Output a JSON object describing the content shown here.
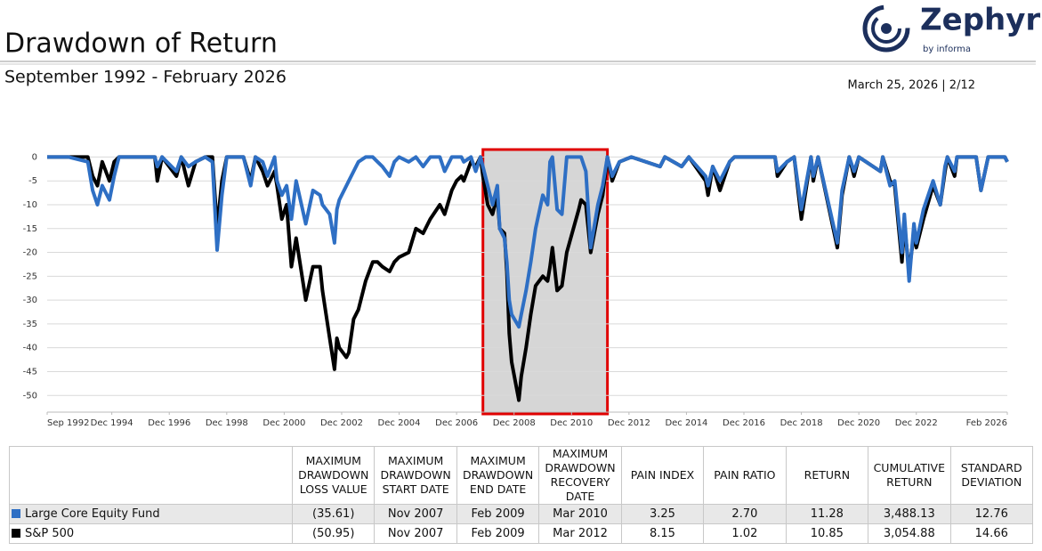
{
  "header": {
    "title": "Drawdown of Return",
    "subtitle": "September 1992 - February 2026",
    "date": "March 25, 2026 | 2/12",
    "logo": "Zephyr",
    "logo_sub": "by informa"
  },
  "chart_data": {
    "type": "line",
    "xlim": [
      "1992-09",
      "2026-02"
    ],
    "xticks": [
      {
        "value": "1992-09",
        "label": "Sep 1992"
      },
      {
        "value": "1994-12",
        "label": "Dec 1994"
      },
      {
        "value": "1996-12",
        "label": "Dec 1996"
      },
      {
        "value": "1998-12",
        "label": "Dec 1998"
      },
      {
        "value": "2000-12",
        "label": "Dec 2000"
      },
      {
        "value": "2002-12",
        "label": "Dec 2002"
      },
      {
        "value": "2004-12",
        "label": "Dec 2004"
      },
      {
        "value": "2006-12",
        "label": "Dec 2006"
      },
      {
        "value": "2008-12",
        "label": "Dec 2008"
      },
      {
        "value": "2010-12",
        "label": "Dec 2010"
      },
      {
        "value": "2012-12",
        "label": "Dec 2012"
      },
      {
        "value": "2014-12",
        "label": "Dec 2014"
      },
      {
        "value": "2016-12",
        "label": "Dec 2016"
      },
      {
        "value": "2018-12",
        "label": "Dec 2018"
      },
      {
        "value": "2020-12",
        "label": "Dec 2020"
      },
      {
        "value": "2022-12",
        "label": "Dec 2022"
      },
      {
        "value": "2026-02",
        "label": "Feb 2026"
      }
    ],
    "ylim": [
      -53.5,
      1.2
    ],
    "yticks": [
      0,
      -5,
      -10,
      -15,
      -20,
      -25,
      -30,
      -35,
      -40,
      -45,
      -50
    ],
    "grid": true,
    "highlight": {
      "start": "2007-11",
      "end": "2012-03"
    },
    "x": [
      "1992-09",
      "1993-06",
      "1994-02",
      "1994-04",
      "1994-06",
      "1994-08",
      "1994-11",
      "1995-01",
      "1995-03",
      "1996-06",
      "1996-07",
      "1996-09",
      "1997-03",
      "1997-05",
      "1997-08",
      "1997-11",
      "1998-03",
      "1998-06",
      "1998-08",
      "1998-10",
      "1998-12",
      "1999-07",
      "1999-10",
      "1999-12",
      "2000-03",
      "2000-05",
      "2000-08",
      "2000-09",
      "2000-11",
      "2001-01",
      "2001-03",
      "2001-05",
      "2001-09",
      "2001-12",
      "2002-03",
      "2002-04",
      "2002-07",
      "2002-09",
      "2002-10",
      "2002-11",
      "2003-02",
      "2003-03",
      "2003-05",
      "2003-07",
      "2003-10",
      "2004-01",
      "2004-03",
      "2004-05",
      "2004-08",
      "2004-10",
      "2004-12",
      "2005-04",
      "2005-07",
      "2005-10",
      "2006-01",
      "2006-05",
      "2006-07",
      "2006-10",
      "2006-12",
      "2007-02",
      "2007-03",
      "2007-06",
      "2007-08",
      "2007-10",
      "2007-11",
      "2008-01",
      "2008-03",
      "2008-05",
      "2008-06",
      "2008-08",
      "2008-09",
      "2008-10",
      "2008-11",
      "2009-02",
      "2009-03",
      "2009-05",
      "2009-07",
      "2009-09",
      "2009-12",
      "2010-02",
      "2010-03",
      "2010-04",
      "2010-06",
      "2010-08",
      "2010-10",
      "2011-03",
      "2011-04",
      "2011-06",
      "2011-08",
      "2011-11",
      "2012-01",
      "2012-03",
      "2012-05",
      "2012-08",
      "2013-01",
      "2014-01",
      "2014-03",
      "2014-10",
      "2015-01",
      "2015-08",
      "2015-09",
      "2015-11",
      "2016-02",
      "2016-06",
      "2016-08",
      "2018-01",
      "2018-02",
      "2018-06",
      "2018-09",
      "2018-12",
      "2019-04",
      "2019-05",
      "2019-07",
      "2020-03",
      "2020-05",
      "2020-08",
      "2020-10",
      "2020-12",
      "2021-09",
      "2021-10",
      "2022-01",
      "2022-03",
      "2022-06",
      "2022-07",
      "2022-09",
      "2022-11",
      "2022-12",
      "2023-03",
      "2023-07",
      "2023-10",
      "2023-12",
      "2024-01",
      "2024-04",
      "2024-05",
      "2025-01",
      "2025-03",
      "2025-06",
      "2026-01",
      "2026-02"
    ],
    "series": [
      {
        "name": "S&P 500",
        "color": "#000000",
        "values": [
          0,
          0,
          0,
          -4,
          -6,
          -1,
          -5,
          -1,
          0,
          0,
          -5,
          0,
          -4,
          0,
          -6,
          -1,
          0,
          0,
          -15,
          -5,
          0,
          0,
          -5,
          0,
          -3,
          -6,
          -3,
          -6,
          -13,
          -10,
          -23,
          -17,
          -30,
          -23,
          -23,
          -28,
          -38,
          -44.5,
          -38,
          -40,
          -42,
          -41,
          -34,
          -32,
          -26,
          -22,
          -22,
          -23,
          -24,
          -22,
          -21,
          -20,
          -15,
          -16,
          -13,
          -10,
          -12,
          -7,
          -5,
          -4,
          -5,
          -1,
          -2,
          0,
          -4,
          -10,
          -12,
          -8,
          -15,
          -16,
          -24,
          -37,
          -43,
          -51,
          -46,
          -40,
          -33,
          -27,
          -25,
          -26,
          -23,
          -19,
          -28,
          -27,
          -20,
          -11,
          -9,
          -10,
          -20,
          -12,
          -8,
          0,
          -5,
          -1,
          0,
          -2,
          0,
          -2,
          0,
          -5,
          -8,
          -2,
          -7,
          -1,
          0,
          0,
          -4,
          -1,
          0,
          -13,
          0,
          -5,
          0,
          -19,
          -8,
          0,
          -4,
          0,
          -3,
          0,
          -5,
          -6,
          -22,
          -14,
          -24,
          -16,
          -19,
          -13,
          -6,
          -10,
          -3,
          0,
          -4,
          0,
          0,
          -7,
          0,
          0,
          -1
        ]
      },
      {
        "name": "Large Core Equity Fund",
        "color": "#2e6fc4",
        "values": [
          0,
          0,
          -1,
          -7,
          -10,
          -6,
          -9,
          -4,
          0,
          0,
          -2,
          0,
          -3,
          0,
          -2,
          -1,
          0,
          -1,
          -19.5,
          -8,
          0,
          0,
          -6,
          0,
          -1,
          -4,
          0,
          -5,
          -8,
          -6,
          -13,
          -5,
          -14,
          -7,
          -8,
          -10,
          -12,
          -18,
          -11,
          -9,
          -6,
          -5,
          -3,
          -1,
          0,
          0,
          -1,
          -2,
          -4,
          -1,
          0,
          -1,
          0,
          -2,
          0,
          0,
          -3,
          0,
          0,
          0,
          -1,
          0,
          -3,
          0,
          -2,
          -6,
          -10,
          -6,
          -15,
          -17,
          -22,
          -30,
          -33,
          -35.6,
          -33,
          -28,
          -22,
          -15,
          -8,
          -10,
          -1,
          0,
          -11,
          -12,
          0,
          0,
          0,
          -3,
          -19,
          -10,
          -6,
          0,
          -4,
          -1,
          0,
          -2,
          0,
          -2,
          0,
          -4,
          -6,
          -2,
          -5,
          -1,
          0,
          0,
          -3,
          -1,
          0,
          -11,
          0,
          -4,
          0,
          -18,
          -7,
          0,
          -3,
          0,
          -3,
          0,
          -6,
          -5,
          -20,
          -12,
          -26,
          -14,
          -18,
          -11,
          -5,
          -10,
          -2,
          0,
          -3,
          0,
          0,
          -7,
          0,
          0,
          -1
        ]
      }
    ]
  },
  "table": {
    "columns": [
      "MAXIMUM DRAWDOWN LOSS VALUE",
      "MAXIMUM DRAWDOWN START DATE",
      "MAXIMUM DRAWDOWN END DATE",
      "MAXIMUM DRAWDOWN RECOVERY DATE",
      "PAIN INDEX",
      "PAIN RATIO",
      "RETURN",
      "CUMULATIVE RETURN",
      "STANDARD DEVIATION"
    ],
    "rows": [
      {
        "name": "Large Core Equity Fund",
        "cells": [
          "(35.61)",
          "Nov 2007",
          "Feb 2009",
          "Mar 2010",
          "3.25",
          "2.70",
          "11.28",
          "3,488.13",
          "12.76"
        ]
      },
      {
        "name": "S&P 500",
        "cells": [
          "(50.95)",
          "Nov 2007",
          "Feb 2009",
          "Mar 2012",
          "8.15",
          "1.02",
          "10.85",
          "3,054.88",
          "14.66"
        ]
      }
    ]
  }
}
